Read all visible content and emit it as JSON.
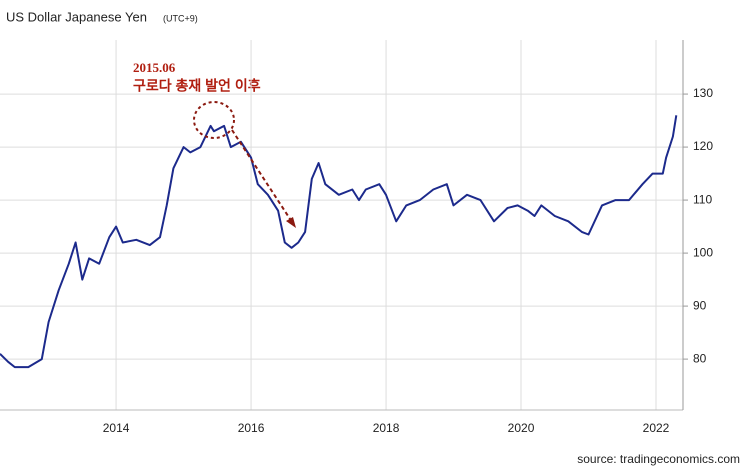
{
  "chart_data": {
    "type": "line",
    "title": "US Dollar Japanese Yen",
    "subtitle": "(UTC+9)",
    "annotations": [
      "2015.06",
      "구로다 총재 발언 이후"
    ],
    "source": "source: tradingeconomics.com",
    "color": "#1c2a8c",
    "x": [
      2012.28,
      2012.4,
      2012.5,
      2012.7,
      2012.9,
      2013.0,
      2013.15,
      2013.3,
      2013.4,
      2013.5,
      2013.6,
      2013.75,
      2013.9,
      2014.0,
      2014.1,
      2014.3,
      2014.5,
      2014.65,
      2014.75,
      2014.85,
      2015.0,
      2015.1,
      2015.25,
      2015.4,
      2015.45,
      2015.6,
      2015.7,
      2015.85,
      2016.0,
      2016.1,
      2016.25,
      2016.4,
      2016.5,
      2016.6,
      2016.7,
      2016.8,
      2016.9,
      2017.0,
      2017.1,
      2017.3,
      2017.5,
      2017.6,
      2017.7,
      2017.9,
      2018.0,
      2018.15,
      2018.3,
      2018.5,
      2018.7,
      2018.9,
      2019.0,
      2019.2,
      2019.4,
      2019.6,
      2019.8,
      2019.95,
      2020.1,
      2020.2,
      2020.3,
      2020.5,
      2020.7,
      2020.9,
      2021.0,
      2021.2,
      2021.4,
      2021.6,
      2021.8,
      2021.95,
      2022.1,
      2022.15,
      2022.25,
      2022.3
    ],
    "values": [
      81,
      79.5,
      78.5,
      78.5,
      80,
      87,
      93,
      98,
      102,
      95,
      99,
      98,
      103,
      105,
      102,
      102.5,
      101.5,
      103,
      109,
      116,
      120,
      119,
      120,
      124,
      123,
      124,
      120,
      121,
      118,
      113,
      111,
      108,
      102,
      101,
      102,
      104,
      114,
      117,
      113,
      111,
      112,
      110,
      112,
      113,
      111,
      106,
      109,
      110,
      112,
      113,
      109,
      111,
      110,
      106,
      108.5,
      109,
      108,
      107,
      109,
      107,
      106,
      104,
      103.5,
      109,
      110,
      110,
      113,
      115,
      115,
      118,
      122,
      126
    ],
    "xlim": [
      2012.28,
      2022.4
    ],
    "xticks": [
      2014,
      2016,
      2018,
      2020,
      2022
    ],
    "ylim": [
      70.4,
      140.2
    ],
    "yticks": [
      80,
      90,
      100,
      110,
      120,
      130
    ],
    "grid": true
  }
}
